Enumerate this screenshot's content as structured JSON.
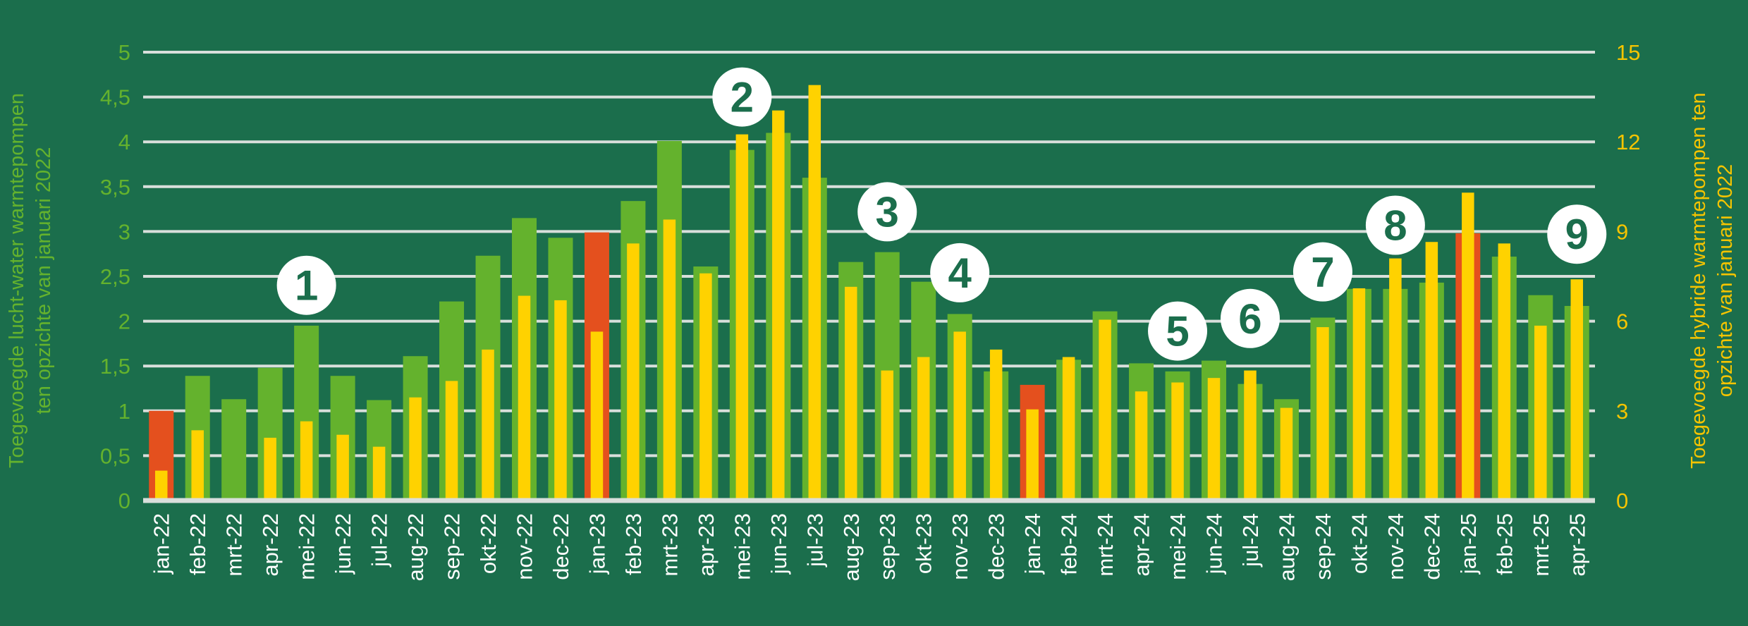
{
  "colors": {
    "background": "#1b6e4c",
    "grid": "#d9dfdb",
    "bar_green": "#64b22d",
    "bar_red": "#e4501e",
    "bar_yellow": "#ffd200",
    "left_axis_text": "#64b22d",
    "right_axis_text": "#f5c400",
    "tick_label_text": "#ffffff",
    "marker_fill": "#ffffff",
    "marker_text": "#1b6e4c"
  },
  "chart_data": {
    "type": "bar",
    "title": "",
    "xlabel": "",
    "ylabel_left": "Toegevoegde lucht-water warmtepompen ten opzichte van januari 2022",
    "ylabel_right": "Toegevoegde hybride warmtepompen ten opzichte van januari 2022",
    "y_left": {
      "lim": [
        0,
        5
      ],
      "ticks": [
        "0",
        "0,5",
        "1",
        "1,5",
        "2",
        "2,5",
        "3",
        "3,5",
        "4",
        "4,5",
        "5"
      ]
    },
    "y_right": {
      "lim": [
        0,
        15
      ],
      "ticks": [
        "0",
        "3",
        "6",
        "9",
        "12",
        "15"
      ]
    },
    "grid": true,
    "categories": [
      "jan-22",
      "feb-22",
      "mrt-22",
      "apr-22",
      "mei-22",
      "jun-22",
      "jul-22",
      "aug-22",
      "sep-22",
      "okt-22",
      "nov-22",
      "dec-22",
      "jan-23",
      "feb-23",
      "mrt-23",
      "apr-23",
      "mei-23",
      "jun-23",
      "jul-23",
      "aug-23",
      "sep-23",
      "okt-23",
      "nov-23",
      "dec-23",
      "jan-24",
      "feb-24",
      "mrt-24",
      "apr-24",
      "mei-24",
      "jun-24",
      "jul-24",
      "aug-24",
      "sep-24",
      "okt-24",
      "nov-24",
      "dec-24",
      "jan-25",
      "feb-25",
      "mrt-25",
      "apr-25"
    ],
    "series": [
      {
        "axis": "left",
        "color_rule": "january bars red, other months green",
        "values": [
          1.0,
          1.39,
          1.13,
          1.48,
          1.95,
          1.39,
          1.12,
          1.61,
          2.22,
          2.73,
          3.15,
          2.93,
          2.99,
          3.34,
          4.01,
          2.61,
          3.91,
          4.1,
          3.6,
          2.66,
          2.77,
          2.44,
          2.08,
          1.44,
          1.29,
          1.57,
          2.11,
          1.53,
          1.44,
          1.56,
          1.3,
          1.13,
          2.04,
          2.36,
          2.36,
          2.43,
          2.98,
          2.72,
          2.29,
          2.17
        ]
      },
      {
        "axis": "right",
        "values": [
          1.0,
          2.35,
          0,
          2.1,
          2.65,
          2.2,
          1.8,
          3.45,
          4.0,
          5.05,
          6.85,
          6.7,
          5.65,
          8.6,
          9.4,
          7.6,
          12.25,
          13.05,
          13.9,
          7.15,
          4.35,
          4.8,
          5.65,
          5.05,
          3.05,
          4.8,
          6.05,
          3.65,
          3.95,
          4.1,
          4.35,
          3.1,
          5.8,
          7.1,
          8.1,
          8.65,
          10.3,
          8.6,
          5.85,
          7.4
        ]
      }
    ],
    "annotations": [
      {
        "label": "1",
        "category": "mei-22",
        "y_left": 2.4
      },
      {
        "label": "2",
        "category": "mei-23",
        "y_left": 4.5
      },
      {
        "label": "3",
        "category": "sep-23",
        "y_left": 3.22
      },
      {
        "label": "4",
        "category": "nov-23",
        "y_left": 2.54
      },
      {
        "label": "5",
        "category": "mei-24",
        "y_left": 1.89
      },
      {
        "label": "6",
        "category": "jul-24",
        "y_left": 2.03
      },
      {
        "label": "7",
        "category": "sep-24",
        "y_left": 2.55
      },
      {
        "label": "8",
        "category": "nov-24",
        "y_left": 3.07
      },
      {
        "label": "9",
        "category": "apr-25",
        "y_left": 2.97
      }
    ]
  }
}
